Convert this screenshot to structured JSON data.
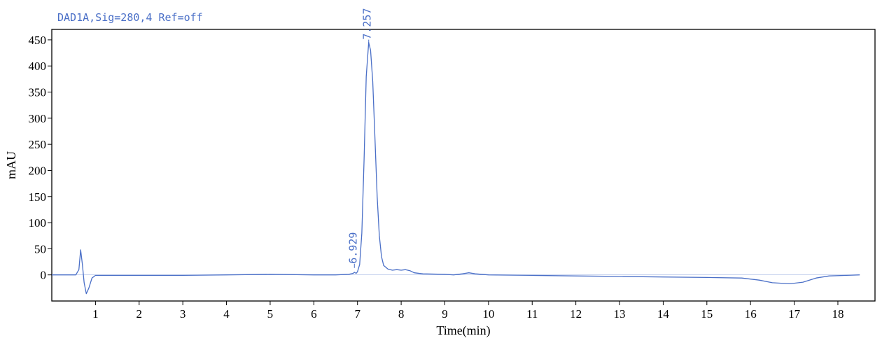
{
  "chart_data": {
    "type": "line",
    "title": "DAD1A,Sig=280,4  Ref=off",
    "xlabel": "Time(min)",
    "ylabel": "mAU",
    "xlim": [
      0,
      18.85
    ],
    "ylim": [
      -50,
      470
    ],
    "x_ticks": [
      1,
      2,
      3,
      4,
      5,
      6,
      7,
      8,
      9,
      10,
      11,
      12,
      13,
      14,
      15,
      16,
      17,
      18
    ],
    "y_ticks": [
      0,
      50,
      100,
      150,
      200,
      250,
      300,
      350,
      400,
      450
    ],
    "grid": false,
    "color": "#4a6fc7",
    "series": [
      {
        "points": [
          [
            0.0,
            0
          ],
          [
            0.4,
            0
          ],
          [
            0.55,
            0
          ],
          [
            0.62,
            10
          ],
          [
            0.66,
            48
          ],
          [
            0.7,
            20
          ],
          [
            0.74,
            -15
          ],
          [
            0.79,
            -36
          ],
          [
            0.85,
            -25
          ],
          [
            0.92,
            -6
          ],
          [
            1.0,
            -1
          ],
          [
            1.5,
            -1
          ],
          [
            2.0,
            -1
          ],
          [
            3.0,
            -1
          ],
          [
            4.0,
            0
          ],
          [
            5.0,
            1
          ],
          [
            6.0,
            0
          ],
          [
            6.5,
            0
          ],
          [
            6.8,
            1
          ],
          [
            6.9,
            3
          ],
          [
            6.93,
            5
          ],
          [
            6.97,
            3
          ],
          [
            7.0,
            6
          ],
          [
            7.05,
            20
          ],
          [
            7.1,
            80
          ],
          [
            7.15,
            220
          ],
          [
            7.2,
            380
          ],
          [
            7.257,
            445
          ],
          [
            7.3,
            430
          ],
          [
            7.35,
            370
          ],
          [
            7.4,
            260
          ],
          [
            7.45,
            150
          ],
          [
            7.5,
            75
          ],
          [
            7.55,
            35
          ],
          [
            7.6,
            18
          ],
          [
            7.7,
            11
          ],
          [
            7.8,
            9
          ],
          [
            7.9,
            10
          ],
          [
            8.0,
            9
          ],
          [
            8.1,
            10
          ],
          [
            8.2,
            8
          ],
          [
            8.3,
            4
          ],
          [
            8.5,
            2
          ],
          [
            9.0,
            1
          ],
          [
            9.2,
            0
          ],
          [
            9.4,
            2
          ],
          [
            9.55,
            4
          ],
          [
            9.7,
            2
          ],
          [
            10.0,
            0
          ],
          [
            11.0,
            -1
          ],
          [
            12.0,
            -2
          ],
          [
            13.0,
            -3
          ],
          [
            14.0,
            -4
          ],
          [
            15.0,
            -5
          ],
          [
            15.8,
            -6
          ],
          [
            16.2,
            -10
          ],
          [
            16.5,
            -15
          ],
          [
            16.9,
            -17
          ],
          [
            17.2,
            -14
          ],
          [
            17.5,
            -6
          ],
          [
            17.8,
            -2
          ],
          [
            18.2,
            -1
          ],
          [
            18.5,
            0
          ]
        ]
      }
    ],
    "peak_labels": [
      {
        "x": 6.929,
        "text": "6.929"
      },
      {
        "x": 7.257,
        "text": "7.257"
      }
    ]
  }
}
